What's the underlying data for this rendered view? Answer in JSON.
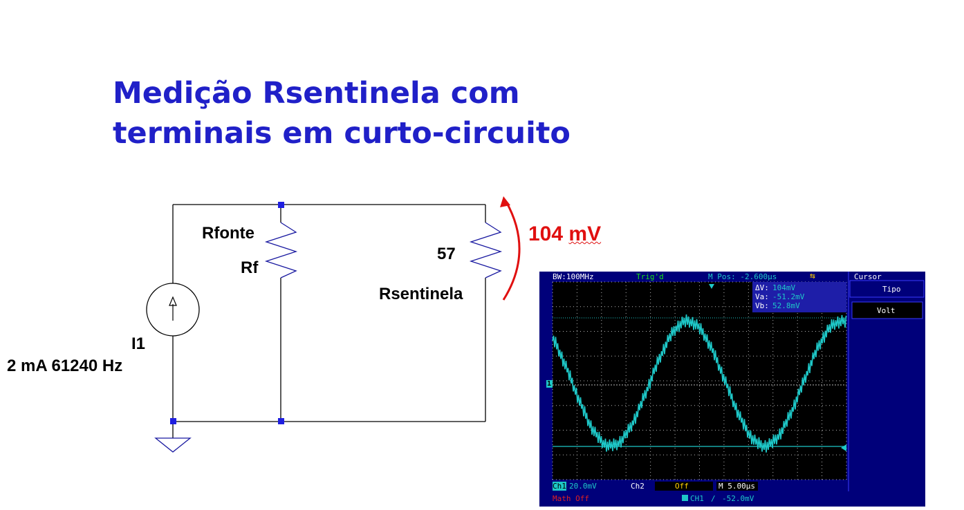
{
  "slide": {
    "title_line1": "Medição Rsentinela com",
    "title_line2": "terminais em curto-circuito"
  },
  "circuit": {
    "source_name": "I1",
    "source_value": "2 mA 61240 Hz",
    "rfonte_label": "Rfonte",
    "rf_label": "Rf",
    "rsent_value": "57",
    "rsent_label": "Rsentinela",
    "measured_value": "104",
    "measured_unit": "mV",
    "colors": {
      "wire": "#000000",
      "node": "#1f1fe0",
      "resistor": "#1818a0",
      "arrow": "#e01010"
    }
  },
  "oscilloscope": {
    "bandwidth": "BW:100MHz",
    "trigger_status": "Trig'd",
    "mpos": "M Pos: -2.600µs",
    "usb_icon": "usb-icon",
    "menu_title": "Cursor",
    "menu_tipo": "Tipo",
    "menu_volt": "Volt",
    "delta_v_label": "ΔV:",
    "delta_v_value": "104mV",
    "va_label": "Va:",
    "va_value": "-51.2mV",
    "vb_label": "Vb:",
    "vb_value": "52.8mV",
    "ch1_label": "Ch1",
    "ch1_scale": "20.0mV",
    "ch2_label": "Ch2",
    "ch2_status": "Off",
    "timebase": "M 5.00µs",
    "math_status": "Math Off",
    "trigger_source": "CH1",
    "trigger_level": "-52.0mV",
    "channel_marker": "1",
    "colors": {
      "background": "#00007a",
      "trace": "#1ec8c8",
      "grid": "#c8c8c8",
      "trig": "#18e018",
      "math": "#e02020"
    }
  }
}
